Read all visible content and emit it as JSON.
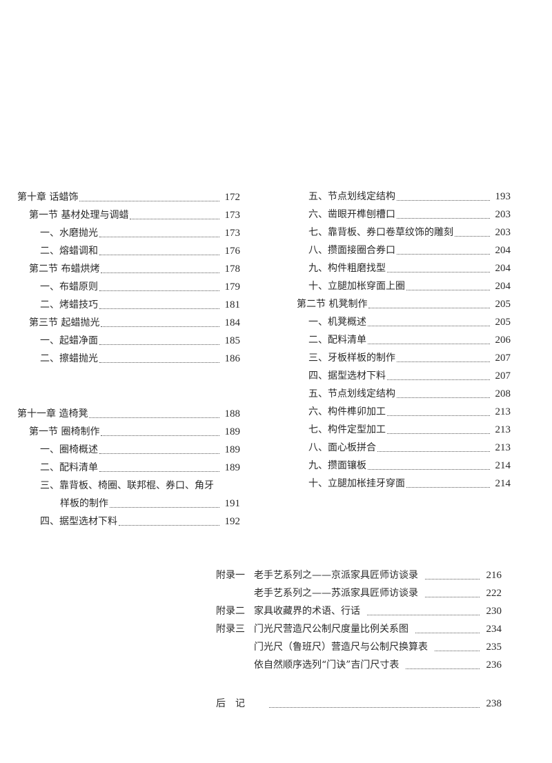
{
  "left_column": [
    {
      "level": 0,
      "text": "第十章 话蜡饰",
      "page": "172"
    },
    {
      "level": 1,
      "text": "第一节 基材处理与调蜡",
      "page": "173"
    },
    {
      "level": 2,
      "text": "一、水磨抛光",
      "page": "173"
    },
    {
      "level": 2,
      "text": "二、熔蜡调和",
      "page": "176"
    },
    {
      "level": 1,
      "text": "第二节 布蜡烘烤",
      "page": "178"
    },
    {
      "level": 2,
      "text": "一、布蜡原则",
      "page": "179"
    },
    {
      "level": 2,
      "text": "二、烤蜡技巧",
      "page": "181"
    },
    {
      "level": 1,
      "text": "第三节 起蜡抛光",
      "page": "184"
    },
    {
      "level": 2,
      "text": "一、起蜡净面",
      "page": "185"
    },
    {
      "level": 2,
      "text": "二、擦蜡抛光",
      "page": "186"
    },
    {
      "level": "gap"
    },
    {
      "level": "gap"
    },
    {
      "level": 0,
      "text": "第十一章 造椅凳",
      "page": "188"
    },
    {
      "level": 1,
      "text": "第一节 圈椅制作",
      "page": "189"
    },
    {
      "level": 2,
      "text": "一、圈椅概述",
      "page": "189"
    },
    {
      "level": 2,
      "text": "二、配料清单",
      "page": "189"
    },
    {
      "level": 2,
      "text": "三、靠背板、椅圈、联邦棍、券口、角牙",
      "page": ""
    },
    {
      "level": 3,
      "text": "样板的制作",
      "page": "191"
    },
    {
      "level": 2,
      "text": "四、据型选材下料",
      "page": "192"
    }
  ],
  "right_column": [
    {
      "level": 2,
      "text": "五、节点划线定结构",
      "page": "193"
    },
    {
      "level": 2,
      "text": "六、凿眼开榫刨槽口",
      "page": "203"
    },
    {
      "level": 2,
      "text": "七、靠背板、券口卷草纹饰的雕刻",
      "page": "203"
    },
    {
      "level": 2,
      "text": "八、攒面接圈合券口",
      "page": "204"
    },
    {
      "level": 2,
      "text": "九、构件粗磨找型",
      "page": "204"
    },
    {
      "level": 2,
      "text": "十、立腿加枨穿面上圈",
      "page": "204"
    },
    {
      "level": 1,
      "text": "第二节 机凳制作",
      "page": "205"
    },
    {
      "level": 2,
      "text": "一、机凳概述",
      "page": "205"
    },
    {
      "level": 2,
      "text": "二、配料清单",
      "page": "206"
    },
    {
      "level": 2,
      "text": "三、牙板样板的制作",
      "page": "207"
    },
    {
      "level": 2,
      "text": "四、据型选材下料",
      "page": "207"
    },
    {
      "level": 2,
      "text": "五、节点划线定结构",
      "page": "208"
    },
    {
      "level": 2,
      "text": "六、构件榫卯加工",
      "page": "213"
    },
    {
      "level": 2,
      "text": "七、构件定型加工",
      "page": "213"
    },
    {
      "level": 2,
      "text": "八、面心板拼合",
      "page": "213"
    },
    {
      "level": 2,
      "text": "九、攒面镶板",
      "page": "214"
    },
    {
      "level": 2,
      "text": "十、立腿加枨挂牙穿面",
      "page": "214"
    }
  ],
  "appendix": [
    {
      "label": "附录一",
      "text": "老手艺系列之——京派家具匠师访谈录",
      "page": "216"
    },
    {
      "label": "",
      "text": "老手艺系列之——苏派家具匠师访谈录",
      "page": "222"
    },
    {
      "label": "附录二",
      "text": "家具收藏界的术语、行话",
      "page": "230"
    },
    {
      "label": "附录三",
      "text": "门光尺营造尺公制尺度量比例关系图",
      "page": "234"
    },
    {
      "label": "",
      "text": "门光尺（鲁班尺）营造尺与公制尺换算表",
      "page": "235"
    },
    {
      "label": "",
      "text": "依自然顺序选列“门诀”吉门尺寸表",
      "page": "236"
    }
  ],
  "afterword": {
    "label": "后　记",
    "page": "238"
  }
}
